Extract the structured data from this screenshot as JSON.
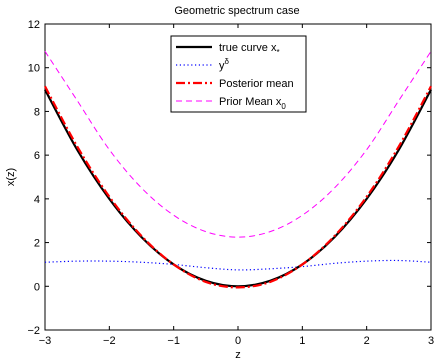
{
  "chart_data": {
    "type": "line",
    "title": "Geometric spectrum case",
    "xlabel": "z",
    "ylabel": "x(z)",
    "xlim": [
      -3,
      3
    ],
    "ylim": [
      -2,
      12
    ],
    "xticks": [
      "−3",
      "−2",
      "−1",
      "0",
      "1",
      "2",
      "3"
    ],
    "yticks": [
      "−2",
      "0",
      "2",
      "4",
      "6",
      "8",
      "10",
      "12"
    ],
    "legend_position": "top-center",
    "series": [
      {
        "name": "true curve x",
        "name_subscript": "*",
        "style": "solid",
        "color": "#000000",
        "x": [
          -3,
          -2.5,
          -2,
          -1.5,
          -1,
          -0.5,
          0,
          0.5,
          1,
          1.5,
          2,
          2.5,
          3
        ],
        "y": [
          9.0,
          6.25,
          4.0,
          2.25,
          1.0,
          0.25,
          0.0,
          0.25,
          1.0,
          2.25,
          4.0,
          6.25,
          9.0
        ]
      },
      {
        "name": "y",
        "name_superscript": "δ",
        "style": "dotted",
        "color": "#0000ff",
        "x": [
          -3,
          -2.5,
          -2,
          -1.5,
          -1,
          -0.5,
          0,
          0.5,
          1,
          1.5,
          2,
          2.5,
          3
        ],
        "y": [
          1.1,
          1.15,
          1.15,
          1.1,
          1.0,
          0.85,
          0.75,
          0.8,
          0.9,
          1.05,
          1.15,
          1.18,
          1.1
        ]
      },
      {
        "name": "Posterior mean",
        "style": "dashdot",
        "color": "#ff0000",
        "x": [
          -3,
          -2.5,
          -2,
          -1.5,
          -1,
          -0.5,
          0,
          0.5,
          1,
          1.5,
          2,
          2.5,
          3
        ],
        "y": [
          9.15,
          6.4,
          4.1,
          2.3,
          1.0,
          0.2,
          -0.05,
          0.2,
          1.0,
          2.3,
          4.1,
          6.4,
          9.15
        ]
      },
      {
        "name": "Prior Mean x",
        "name_subscript": "0",
        "style": "dashed",
        "color": "#ff00ff",
        "x": [
          -3,
          -2.5,
          -2,
          -1.5,
          -1,
          -0.5,
          0,
          0.5,
          1,
          1.5,
          2,
          2.5,
          3
        ],
        "y": [
          10.75,
          8.5,
          6.25,
          4.5,
          3.25,
          2.5,
          2.25,
          2.5,
          3.25,
          4.5,
          6.25,
          8.5,
          10.75
        ]
      }
    ]
  }
}
